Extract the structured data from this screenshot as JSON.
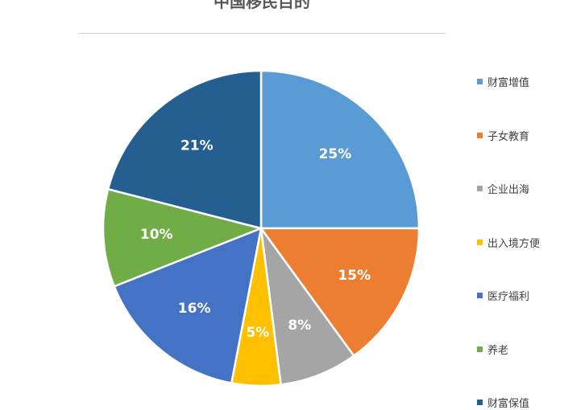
{
  "chart_data": {
    "type": "pie",
    "title": "中国移民目的",
    "slices": [
      {
        "name": "财富增值",
        "value": 25,
        "label": "25%",
        "color": "#5B9BD5"
      },
      {
        "name": "子女教育",
        "value": 15,
        "label": "15%",
        "color": "#ED7D31"
      },
      {
        "name": "企业出海",
        "value": 8,
        "label": "8%",
        "color": "#A5A5A5"
      },
      {
        "name": "出入境方便",
        "value": 5,
        "label": "5%",
        "color": "#FFC000"
      },
      {
        "name": "医疗福利",
        "value": 16,
        "label": "16%",
        "color": "#4472C4"
      },
      {
        "name": "养老",
        "value": 10,
        "label": "10%",
        "color": "#70AD47"
      },
      {
        "name": "财富保值",
        "value": 21,
        "label": "21%",
        "color": "#255E91"
      }
    ],
    "legend_position": "right",
    "start_angle_deg": 0,
    "direction": "clockwise"
  }
}
